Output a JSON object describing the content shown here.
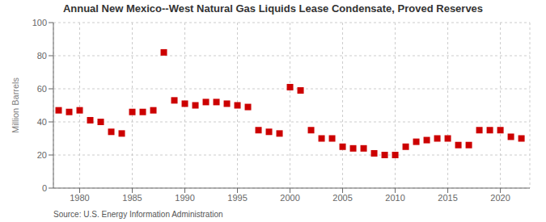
{
  "chart_data": {
    "type": "scatter",
    "title": "Annual New Mexico--West Natural Gas Liquids Lease Condensate, Proved Reserves",
    "ylabel": "Million Barrels",
    "source": "Source: U.S. Energy Information Administration",
    "color": "#cc0000",
    "marker": "square",
    "grid": true,
    "xlim": [
      1977.5,
      2022.8
    ],
    "ylim": [
      0,
      100
    ],
    "xticks": [
      1980,
      1985,
      1990,
      1995,
      2000,
      2005,
      2010,
      2015,
      2020
    ],
    "yticks": [
      0,
      20,
      40,
      60,
      80,
      100
    ],
    "x": [
      1978,
      1979,
      1980,
      1981,
      1982,
      1983,
      1984,
      1985,
      1986,
      1987,
      1988,
      1989,
      1990,
      1991,
      1992,
      1993,
      1994,
      1995,
      1996,
      1997,
      1998,
      1999,
      2000,
      2001,
      2002,
      2003,
      2004,
      2005,
      2006,
      2007,
      2008,
      2009,
      2010,
      2011,
      2012,
      2013,
      2014,
      2015,
      2016,
      2017,
      2018,
      2019,
      2020,
      2021,
      2022
    ],
    "values": [
      47,
      46,
      47,
      41,
      40,
      34,
      33,
      46,
      46,
      47,
      82,
      53,
      51,
      50,
      52,
      52,
      51,
      50,
      49,
      35,
      34,
      33,
      61,
      59,
      35,
      30,
      30,
      25,
      24,
      24,
      21,
      20,
      20,
      25,
      28,
      29,
      30,
      30,
      26,
      26,
      35,
      35,
      35,
      31,
      30
    ]
  }
}
